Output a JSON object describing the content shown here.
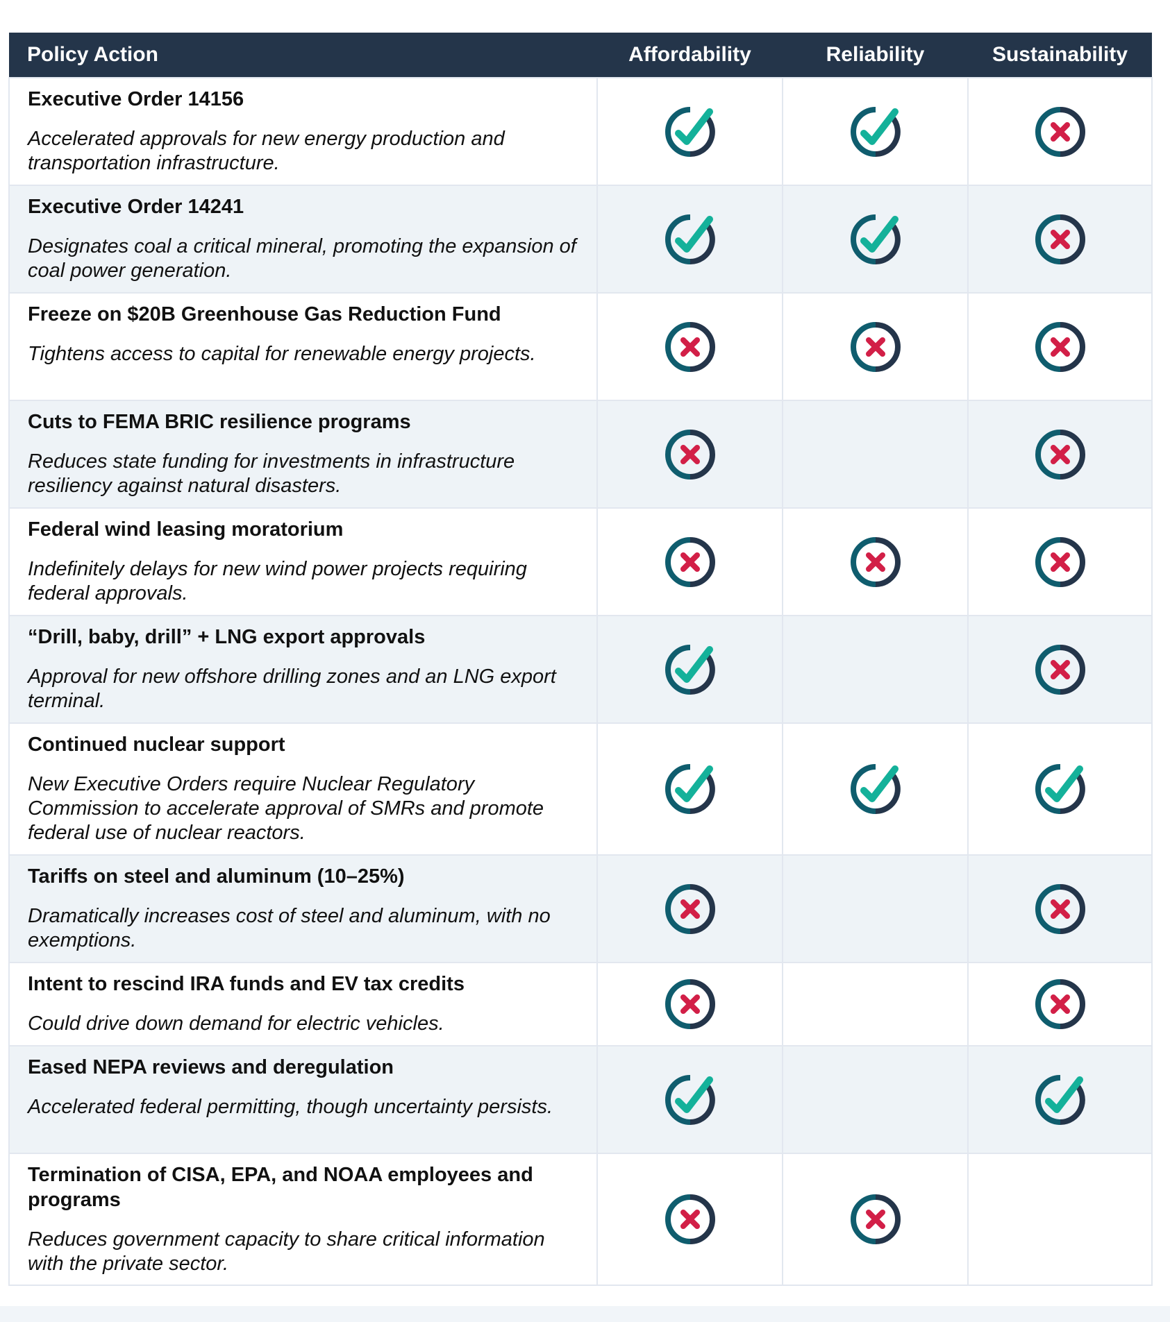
{
  "table": {
    "headers": [
      "Policy Action",
      "Affordability",
      "Reliability",
      "Sustainability"
    ],
    "rows": [
      {
        "title": "Executive Order 14156",
        "description": "Accelerated approvals for new energy production and transportation infrastructure.",
        "affordability": "check",
        "reliability": "check",
        "sustainability": "x"
      },
      {
        "title": "Executive Order 14241",
        "description": "Designates coal a critical mineral, promoting the expansion of coal power generation.",
        "affordability": "check",
        "reliability": "check",
        "sustainability": "x"
      },
      {
        "title": "Freeze on $20B Greenhouse Gas Reduction Fund",
        "description": "Tightens access to capital for renewable energy projects.",
        "affordability": "x",
        "reliability": "x",
        "sustainability": "x"
      },
      {
        "title": "Cuts to FEMA BRIC resilience programs",
        "description": "Reduces state funding for investments in infrastructure resiliency against natural disasters.",
        "affordability": "x",
        "reliability": "",
        "sustainability": "x"
      },
      {
        "title": "Federal wind leasing moratorium",
        "description": "Indefinitely delays for new wind power projects requiring federal approvals.",
        "affordability": "x",
        "reliability": "x",
        "sustainability": "x"
      },
      {
        "title": "“Drill, baby, drill” + LNG export approvals",
        "description": "Approval for new offshore drilling zones and an LNG export terminal.",
        "affordability": "check",
        "reliability": "",
        "sustainability": "x"
      },
      {
        "title": "Continued nuclear support",
        "description": "New Executive Orders require Nuclear Regulatory Commission to accelerate approval of SMRs and promote federal use of nuclear reactors.",
        "affordability": "check",
        "reliability": "check",
        "sustainability": "check"
      },
      {
        "title": "Tariffs on steel and aluminum (10–25%)",
        "description": "Dramatically increases cost of steel and aluminum, with no exemptions.",
        "affordability": "x",
        "reliability": "",
        "sustainability": "x"
      },
      {
        "title": "Intent to rescind IRA funds and EV tax credits",
        "description": "Could drive down demand for electric vehicles.",
        "affordability": "x",
        "reliability": "",
        "sustainability": "x"
      },
      {
        "title": "Eased NEPA reviews and deregulation",
        "description": "Accelerated federal permitting, though uncertainty persists.",
        "affordability": "check",
        "reliability": "",
        "sustainability": "check"
      },
      {
        "title": "Termination of CISA, EPA, and NOAA employees and programs",
        "description": "Reduces government capacity to share critical information with the private sector.",
        "affordability": "x",
        "reliability": "x",
        "sustainability": ""
      }
    ]
  },
  "colors": {
    "header_bg": "#24354a",
    "check_accent": "#14b19a",
    "x_accent": "#d21f47",
    "ring_dark": "#24354a",
    "ring_teal": "#0f5d6e",
    "row_alt": "#eef3f7",
    "gridline": "#e2e7ef"
  },
  "icons": {
    "check": "check-circle-icon",
    "x": "x-circle-icon"
  }
}
